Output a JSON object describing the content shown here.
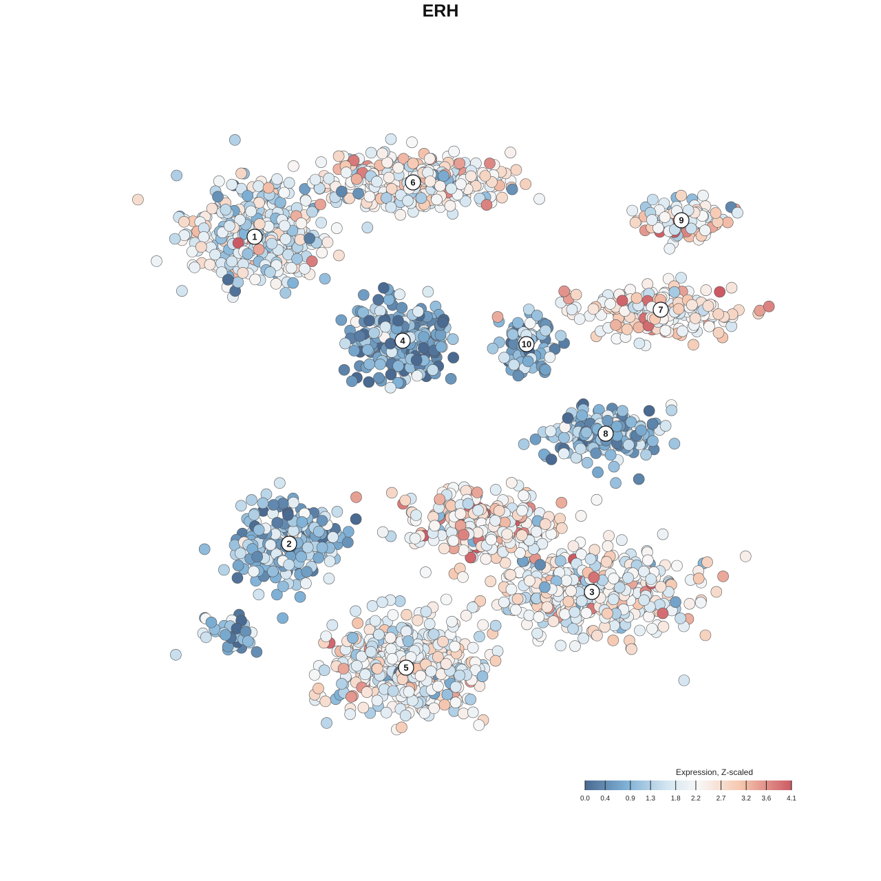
{
  "chart_data": {
    "type": "scatter",
    "title": "ERH",
    "subtitle": "",
    "xlabel": "",
    "ylabel": "",
    "grid": false,
    "color_legend": {
      "title": "Expression, Z-scaled",
      "position": "bottom-right",
      "range": [
        0.0,
        4.1
      ],
      "ticks": [
        "0.0",
        "0.4",
        "0.9",
        "1.3",
        "1.8",
        "2.2",
        "2.7",
        "3.2",
        "3.6",
        "4.1"
      ],
      "tick_values": [
        0.0,
        0.4,
        0.9,
        1.3,
        1.8,
        2.2,
        2.7,
        3.2,
        3.6,
        4.1
      ],
      "colors": [
        "#4a6a91",
        "#7fb1d6",
        "#d5e6f1",
        "#f7f7f7",
        "#f6c8b0",
        "#cc5a64"
      ]
    },
    "clusters": [
      {
        "label": "1",
        "center": [
          370,
          344
        ],
        "spread": [
          100,
          70
        ],
        "n": 380,
        "mean_expr": 1.9
      },
      {
        "label": "6",
        "center": [
          600,
          265
        ],
        "spread": [
          140,
          40
        ],
        "n": 340,
        "mean_expr": 2.3
      },
      {
        "label": "9",
        "center": [
          990,
          320
        ],
        "spread": [
          60,
          30
        ],
        "n": 110,
        "mean_expr": 2.4
      },
      {
        "label": "7",
        "center": [
          960,
          450
        ],
        "spread": [
          110,
          35
        ],
        "n": 200,
        "mean_expr": 2.5
      },
      {
        "label": "4",
        "center": [
          585,
          495
        ],
        "spread": [
          70,
          55
        ],
        "n": 300,
        "mean_expr": 0.7
      },
      {
        "label": "10",
        "center": [
          765,
          500
        ],
        "spread": [
          40,
          40
        ],
        "n": 90,
        "mean_expr": 1.0
      },
      {
        "label": "8",
        "center": [
          880,
          630
        ],
        "spread": [
          80,
          40
        ],
        "n": 180,
        "mean_expr": 1.0
      },
      {
        "label": "2",
        "center": [
          420,
          790
        ],
        "spread": [
          80,
          60
        ],
        "n": 210,
        "mean_expr": 1.0
      },
      {
        "label": "3",
        "center": [
          860,
          860
        ],
        "spread": [
          140,
          60
        ],
        "n": 420,
        "mean_expr": 2.3
      },
      {
        "label": "5",
        "center": [
          590,
          970
        ],
        "spread": [
          110,
          70
        ],
        "n": 420,
        "mean_expr": 2.2
      },
      {
        "label": "",
        "center": [
          700,
          760
        ],
        "spread": [
          110,
          50
        ],
        "n": 260,
        "mean_expr": 2.6
      },
      {
        "label": "",
        "center": [
          340,
          925
        ],
        "spread": [
          50,
          25
        ],
        "n": 40,
        "mean_expr": 0.9
      }
    ]
  }
}
